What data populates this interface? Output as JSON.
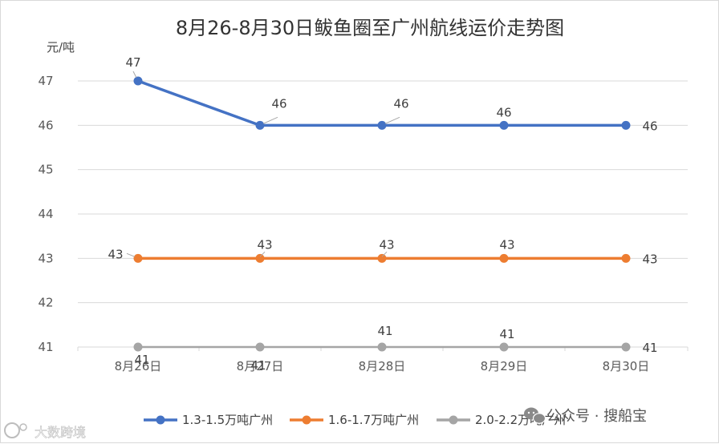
{
  "chart_data": {
    "type": "line",
    "title": "8月26-8月30日鲅鱼圈至广州航线运价走势图",
    "ylabel": "元/吨",
    "xlabel": "",
    "categories": [
      "8月26日",
      "8月27日",
      "8月28日",
      "8月29日",
      "8月30日"
    ],
    "ylim": [
      41,
      47
    ],
    "yticks": [
      41,
      42,
      43,
      44,
      45,
      46,
      47
    ],
    "grid": true,
    "legend_position": "bottom",
    "series": [
      {
        "name": "1.3-1.5万吨广州",
        "color": "#4472c4",
        "values": [
          47,
          46,
          46,
          46,
          46
        ]
      },
      {
        "name": "1.6-1.7万吨广州",
        "color": "#ed7d31",
        "values": [
          43,
          43,
          43,
          43,
          43
        ]
      },
      {
        "name": "2.0-2.2万吨广州",
        "color": "#a5a5a5",
        "values": [
          41,
          41,
          41,
          41,
          41
        ]
      }
    ]
  },
  "watermarks": {
    "right": "公众号 · 搜船宝",
    "right_icon": "wechat-icon",
    "left": "大数跨境",
    "left_icon": "logo-icon"
  }
}
